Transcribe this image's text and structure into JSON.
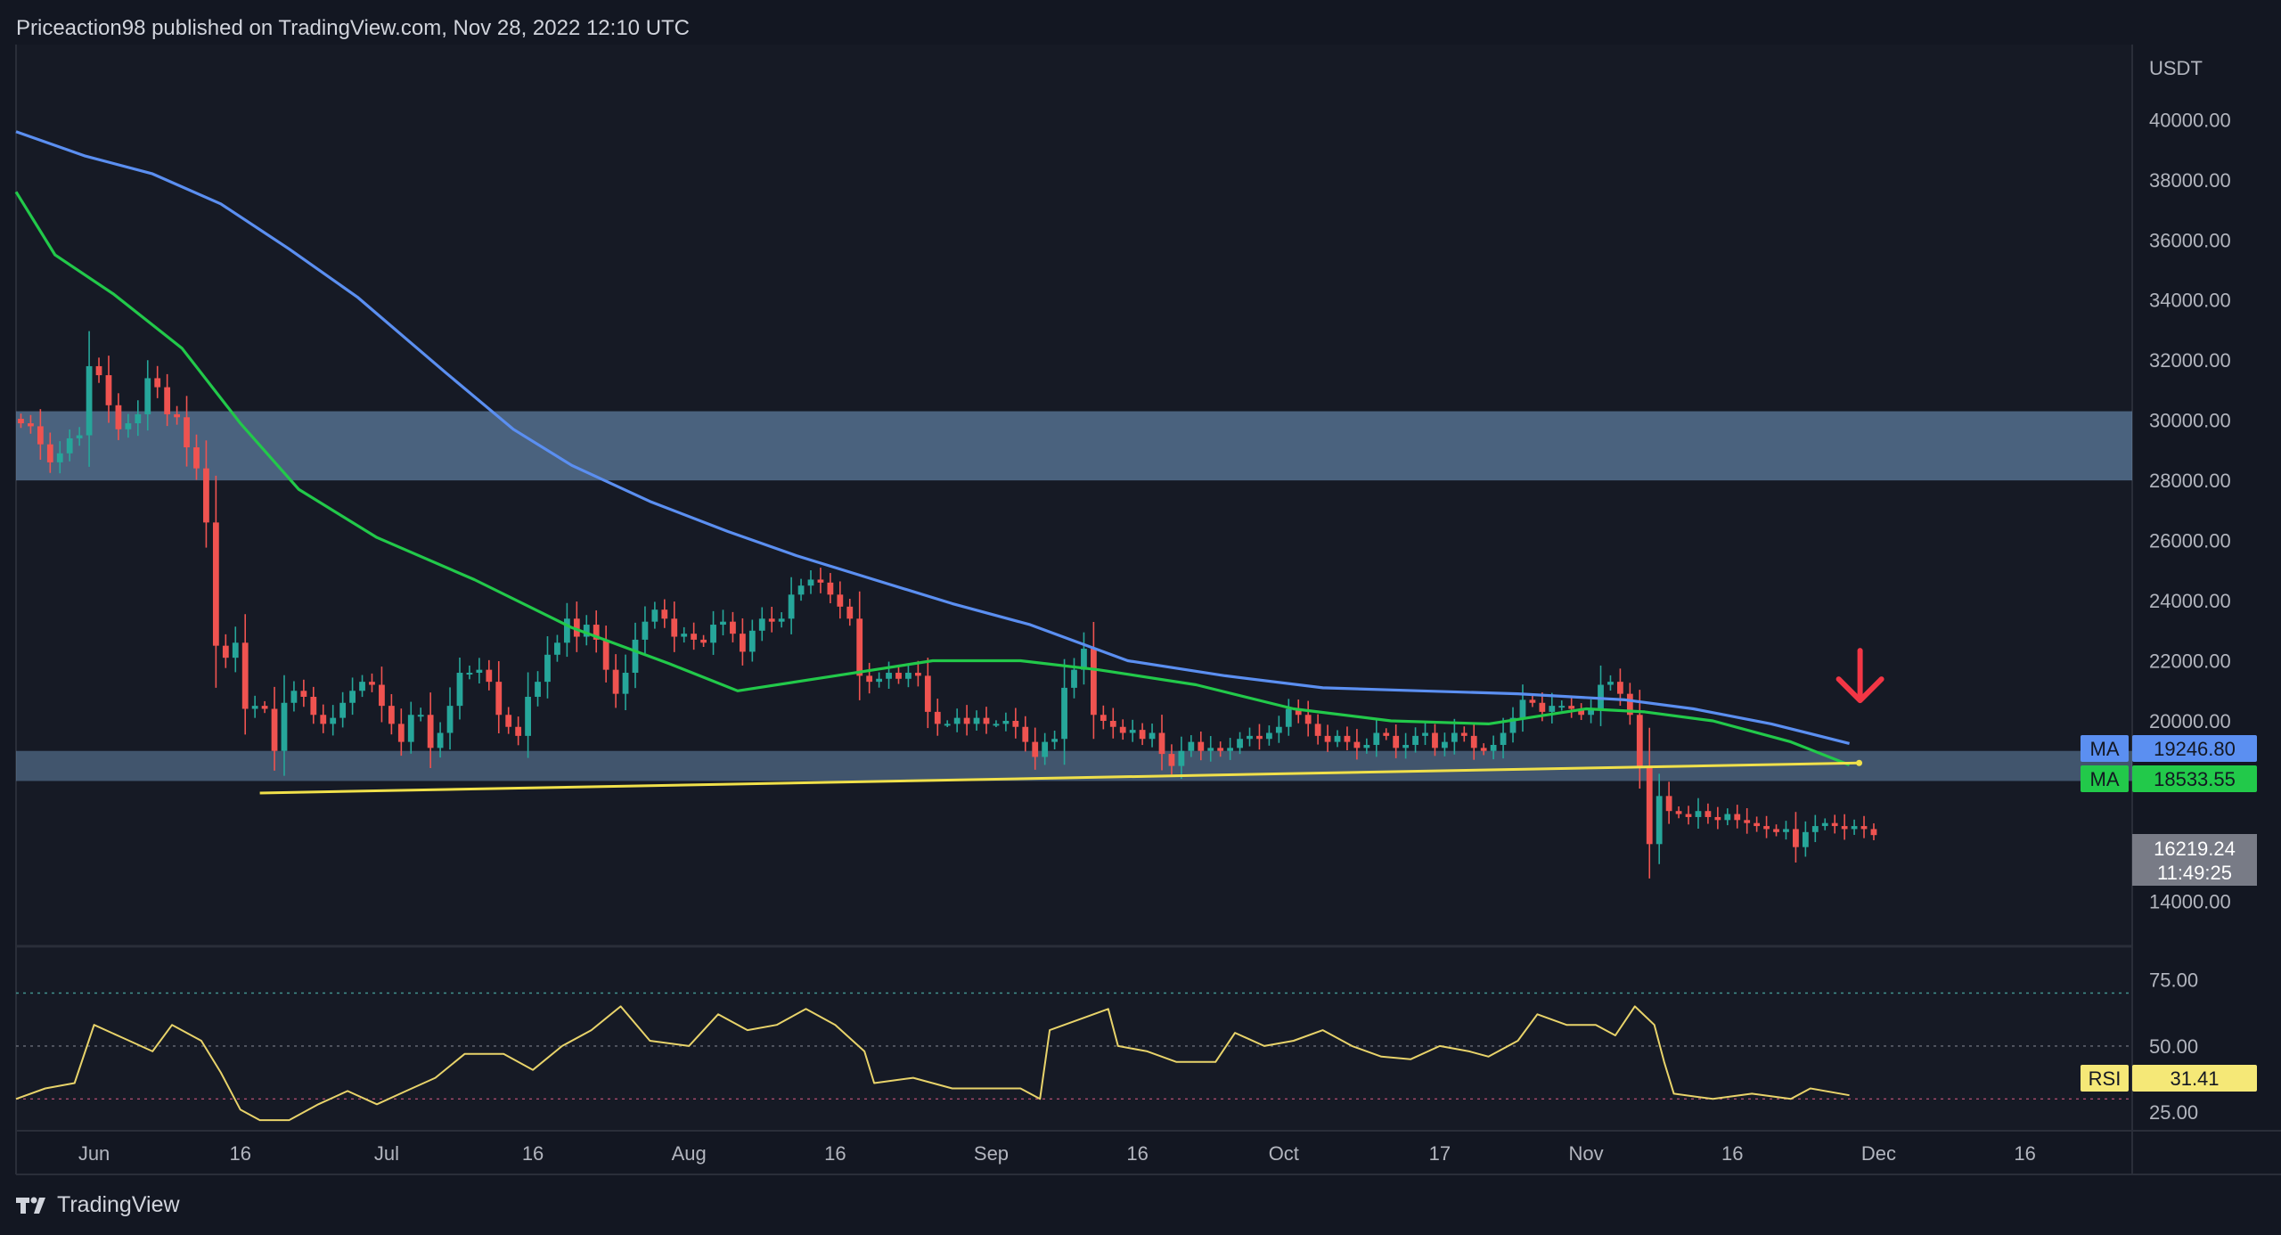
{
  "header": {
    "text": "Priceaction98 published on TradingView.com, Nov 28, 2022 12:10 UTC"
  },
  "footer": {
    "brand": "TradingView"
  },
  "chart_data": [
    {
      "type": "candlestick",
      "currency_label": "USDT",
      "ylim": [
        12500,
        42500
      ],
      "y_ticks": [
        14000,
        16000,
        18000,
        20000,
        22000,
        24000,
        26000,
        28000,
        30000,
        32000,
        34000,
        36000,
        38000,
        40000
      ],
      "y_tick_labels": [
        "14000.00",
        "16000.00",
        "18000.00",
        "20000.00",
        "22000.00",
        "24000.00",
        "26000.00",
        "28000.00",
        "30000.00",
        "32000.00",
        "34000.00",
        "36000.00",
        "38000.00",
        "40000.00"
      ],
      "x_range": [
        "2022-05-24",
        "2022-12-27"
      ],
      "x_ticks": [
        {
          "date": "2022-06-01",
          "label": "Jun"
        },
        {
          "date": "2022-06-16",
          "label": "16"
        },
        {
          "date": "2022-07-01",
          "label": "Jul"
        },
        {
          "date": "2022-07-16",
          "label": "16"
        },
        {
          "date": "2022-08-01",
          "label": "Aug"
        },
        {
          "date": "2022-08-16",
          "label": "16"
        },
        {
          "date": "2022-09-01",
          "label": "Sep"
        },
        {
          "date": "2022-09-16",
          "label": "16"
        },
        {
          "date": "2022-10-01",
          "label": "Oct"
        },
        {
          "date": "2022-10-17",
          "label": "17"
        },
        {
          "date": "2022-11-01",
          "label": "Nov"
        },
        {
          "date": "2022-11-16",
          "label": "16"
        },
        {
          "date": "2022-12-01",
          "label": "Dec"
        },
        {
          "date": "2022-12-16",
          "label": "16"
        }
      ],
      "first_candle_date": "2022-05-24",
      "candles_close": [
        29900,
        29800,
        29200,
        28600,
        28900,
        29400,
        29500,
        31800,
        31500,
        30500,
        29700,
        29900,
        30200,
        31400,
        31100,
        30200,
        30100,
        29100,
        28400,
        26600,
        22500,
        22100,
        22600,
        20400,
        20500,
        20400,
        19000,
        20600,
        21000,
        20800,
        20200,
        19900,
        20100,
        20600,
        21000,
        21300,
        21200,
        20500,
        19900,
        19300,
        20200,
        20200,
        19100,
        19600,
        20500,
        21600,
        21600,
        21700,
        21300,
        20200,
        19800,
        19500,
        20800,
        21300,
        22200,
        22600,
        23400,
        22800,
        23200,
        22700,
        21700,
        20900,
        21600,
        22700,
        23300,
        23700,
        23400,
        22800,
        22900,
        22700,
        22600,
        23200,
        23300,
        22900,
        22300,
        23000,
        23400,
        23300,
        23400,
        24200,
        24500,
        24700,
        24600,
        24200,
        23800,
        23400,
        21500,
        21300,
        21400,
        21600,
        21400,
        21600,
        21500,
        20300,
        19900,
        19900,
        20100,
        19900,
        20100,
        19900,
        19900,
        20000,
        19800,
        19300,
        18800,
        19300,
        19400,
        21100,
        21700,
        22400,
        20200,
        20000,
        19800,
        19600,
        19700,
        19400,
        19600,
        18900,
        18500,
        19000,
        19300,
        19000,
        19100,
        19000,
        19100,
        19400,
        19500,
        19400,
        19600,
        19800,
        20400,
        20200,
        19900,
        19500,
        19300,
        19500,
        19300,
        19100,
        19200,
        19600,
        19500,
        19100,
        19200,
        19500,
        19600,
        19100,
        19300,
        19600,
        19500,
        19100,
        19000,
        19200,
        19600,
        20100,
        20700,
        20600,
        20300,
        20500,
        20500,
        20400,
        20200,
        20400,
        21200,
        21300,
        20900,
        20200,
        18500,
        15900,
        17500,
        17000,
        16900,
        16800,
        17000,
        16800,
        16700,
        16900,
        16700,
        16600,
        16500,
        16400,
        16300,
        16400,
        15800,
        16300,
        16500,
        16600,
        16500,
        16400,
        16500,
        16400,
        16200
      ],
      "series": [
        {
          "name": "MA",
          "value_label": "19246.80",
          "color": "#5b8ff1",
          "points": [
            [
              "2022-05-24",
              39600
            ],
            [
              "2022-05-31",
              38800
            ],
            [
              "2022-06-07",
              38200
            ],
            [
              "2022-06-14",
              37200
            ],
            [
              "2022-06-21",
              35700
            ],
            [
              "2022-06-28",
              34100
            ],
            [
              "2022-07-07",
              31600
            ],
            [
              "2022-07-14",
              29700
            ],
            [
              "2022-07-20",
              28500
            ],
            [
              "2022-07-28",
              27300
            ],
            [
              "2022-08-05",
              26300
            ],
            [
              "2022-08-12",
              25500
            ],
            [
              "2022-08-20",
              24700
            ],
            [
              "2022-08-28",
              23900
            ],
            [
              "2022-09-05",
              23200
            ],
            [
              "2022-09-15",
              22000
            ],
            [
              "2022-09-25",
              21500
            ],
            [
              "2022-10-05",
              21100
            ],
            [
              "2022-10-15",
              21000
            ],
            [
              "2022-10-25",
              20900
            ],
            [
              "2022-11-05",
              20700
            ],
            [
              "2022-11-12",
              20400
            ],
            [
              "2022-11-20",
              19900
            ],
            [
              "2022-11-28",
              19247
            ]
          ]
        },
        {
          "name": "MA",
          "value_label": "18533.55",
          "color": "#22c94a",
          "points": [
            [
              "2022-05-24",
              37600
            ],
            [
              "2022-05-28",
              35500
            ],
            [
              "2022-06-03",
              34200
            ],
            [
              "2022-06-10",
              32400
            ],
            [
              "2022-06-16",
              29900
            ],
            [
              "2022-06-22",
              27700
            ],
            [
              "2022-06-30",
              26100
            ],
            [
              "2022-07-10",
              24700
            ],
            [
              "2022-07-20",
              23100
            ],
            [
              "2022-07-30",
              21900
            ],
            [
              "2022-08-06",
              21000
            ],
            [
              "2022-08-16",
              21500
            ],
            [
              "2022-08-26",
              22000
            ],
            [
              "2022-09-04",
              22000
            ],
            [
              "2022-09-12",
              21700
            ],
            [
              "2022-09-22",
              21200
            ],
            [
              "2022-10-02",
              20400
            ],
            [
              "2022-10-12",
              20000
            ],
            [
              "2022-10-22",
              19900
            ],
            [
              "2022-11-01",
              20400
            ],
            [
              "2022-11-07",
              20300
            ],
            [
              "2022-11-14",
              20000
            ],
            [
              "2022-11-22",
              19300
            ],
            [
              "2022-11-28",
              18534
            ]
          ]
        }
      ],
      "current_price": "16219.24",
      "countdown": "11:49:25",
      "support_zones": [
        {
          "from": 28000,
          "to": 30300
        },
        {
          "from": 18000,
          "to": 19000
        }
      ],
      "trendline": {
        "start": [
          "2022-06-18",
          17600
        ],
        "end": [
          "2022-11-29",
          18600
        ]
      },
      "arrow": {
        "date": "2022-11-28",
        "value": 20500
      }
    },
    {
      "type": "line",
      "indicator": "RSI",
      "current_value": "31.41",
      "ylim": [
        18,
        87
      ],
      "y_tick_labels": [
        "75.00",
        "50.00",
        "25.00"
      ],
      "levels": [
        70,
        50,
        30
      ],
      "points": [
        [
          "2022-05-24",
          30
        ],
        [
          "2022-05-27",
          34
        ],
        [
          "2022-05-30",
          36
        ],
        [
          "2022-06-01",
          58
        ],
        [
          "2022-06-04",
          53
        ],
        [
          "2022-06-07",
          48
        ],
        [
          "2022-06-09",
          58
        ],
        [
          "2022-06-12",
          52
        ],
        [
          "2022-06-14",
          40
        ],
        [
          "2022-06-16",
          26
        ],
        [
          "2022-06-18",
          22
        ],
        [
          "2022-06-21",
          22
        ],
        [
          "2022-06-24",
          28
        ],
        [
          "2022-06-27",
          33
        ],
        [
          "2022-06-30",
          28
        ],
        [
          "2022-07-03",
          33
        ],
        [
          "2022-07-06",
          38
        ],
        [
          "2022-07-09",
          47
        ],
        [
          "2022-07-13",
          47
        ],
        [
          "2022-07-16",
          41
        ],
        [
          "2022-07-19",
          50
        ],
        [
          "2022-07-22",
          56
        ],
        [
          "2022-07-25",
          65
        ],
        [
          "2022-07-28",
          52
        ],
        [
          "2022-08-01",
          50
        ],
        [
          "2022-08-04",
          62
        ],
        [
          "2022-08-07",
          56
        ],
        [
          "2022-08-10",
          58
        ],
        [
          "2022-08-13",
          64
        ],
        [
          "2022-08-16",
          58
        ],
        [
          "2022-08-19",
          48
        ],
        [
          "2022-08-20",
          36
        ],
        [
          "2022-08-24",
          38
        ],
        [
          "2022-08-28",
          34
        ],
        [
          "2022-09-01",
          34
        ],
        [
          "2022-09-04",
          34
        ],
        [
          "2022-09-06",
          30
        ],
        [
          "2022-09-07",
          56
        ],
        [
          "2022-09-10",
          60
        ],
        [
          "2022-09-13",
          64
        ],
        [
          "2022-09-14",
          50
        ],
        [
          "2022-09-17",
          48
        ],
        [
          "2022-09-20",
          44
        ],
        [
          "2022-09-24",
          44
        ],
        [
          "2022-09-26",
          55
        ],
        [
          "2022-09-29",
          50
        ],
        [
          "2022-10-02",
          52
        ],
        [
          "2022-10-05",
          56
        ],
        [
          "2022-10-08",
          50
        ],
        [
          "2022-10-11",
          46
        ],
        [
          "2022-10-14",
          45
        ],
        [
          "2022-10-17",
          50
        ],
        [
          "2022-10-20",
          48
        ],
        [
          "2022-10-22",
          46
        ],
        [
          "2022-10-25",
          52
        ],
        [
          "2022-10-27",
          62
        ],
        [
          "2022-10-30",
          58
        ],
        [
          "2022-11-02",
          58
        ],
        [
          "2022-11-04",
          54
        ],
        [
          "2022-11-06",
          65
        ],
        [
          "2022-11-08",
          58
        ],
        [
          "2022-11-09",
          44
        ],
        [
          "2022-11-10",
          32
        ],
        [
          "2022-11-14",
          30
        ],
        [
          "2022-11-18",
          32
        ],
        [
          "2022-11-22",
          30
        ],
        [
          "2022-11-24",
          34
        ],
        [
          "2022-11-28",
          31.41
        ]
      ]
    }
  ]
}
